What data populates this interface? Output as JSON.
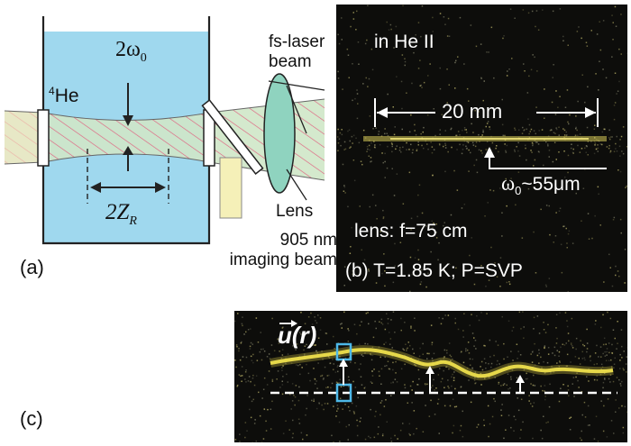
{
  "panel_a": {
    "panel_label": "(a)",
    "helium_label_sup": "4",
    "helium_label": "He",
    "waist_label_prefix": "2ω",
    "waist_label_sub": "0",
    "rayleigh_label_prefix": "2Z",
    "rayleigh_label_sub": "R",
    "fs_laser_line1": "fs-laser",
    "fs_laser_line2": "beam",
    "lens_label": "Lens",
    "imaging_line1": "905 nm",
    "imaging_line2": "imaging beam",
    "colors": {
      "helium": "#9fd8ee",
      "beam": "#cfe7c8",
      "lens": "#8fd3bf",
      "imaging": "#f5f0b8",
      "hatch": "#e06080"
    }
  },
  "panel_b": {
    "header": "in He II",
    "span_label": "20 mm",
    "waist_label": "ω",
    "waist_sub": "0",
    "waist_value": "~55μm",
    "lens_text": "lens: f=75 cm",
    "panel_label": "(b) T=1.85 K; P=SVP"
  },
  "panel_c": {
    "panel_label": "(c)",
    "vector_label": "u(r)",
    "colors": {
      "streak": "#e6d84a",
      "marker": "#4db8e8"
    }
  }
}
